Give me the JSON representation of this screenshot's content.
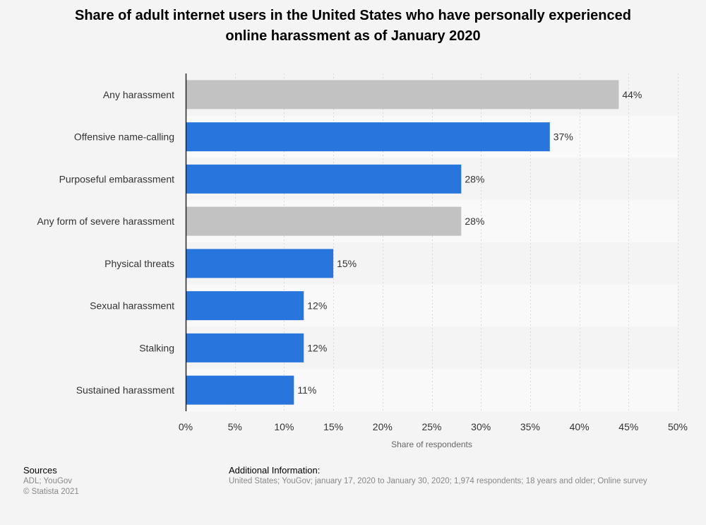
{
  "title_line1": "Share of adult internet users in the United States who have personally experienced",
  "title_line2": "online harassment as of January 2020",
  "chart_data": {
    "type": "bar",
    "orientation": "horizontal",
    "categories": [
      "Any harassment",
      "Offensive name-calling",
      "Purposeful embarassment",
      "Any form of severe harassment",
      "Physical threats",
      "Sexual harassment",
      "Stalking",
      "Sustained harassment"
    ],
    "values": [
      44,
      37,
      28,
      28,
      15,
      12,
      12,
      11
    ],
    "value_labels": [
      "44%",
      "37%",
      "28%",
      "28%",
      "15%",
      "12%",
      "12%",
      "11%"
    ],
    "bar_colors": [
      "#c2c2c2",
      "#2876dd",
      "#2876dd",
      "#c2c2c2",
      "#2876dd",
      "#2876dd",
      "#2876dd",
      "#2876dd"
    ],
    "xlabel": "Share of respondents",
    "ylabel": "",
    "xlim": [
      0,
      50
    ],
    "x_ticks": [
      0,
      5,
      10,
      15,
      20,
      25,
      30,
      35,
      40,
      45,
      50
    ],
    "x_tick_labels": [
      "0%",
      "5%",
      "10%",
      "15%",
      "20%",
      "25%",
      "30%",
      "35%",
      "40%",
      "45%",
      "50%"
    ],
    "grid": true
  },
  "footer": {
    "sources_header": "Sources",
    "sources_line1": "ADL; YouGov",
    "sources_line2": "© Statista 2021",
    "additional_header": "Additional Information:",
    "additional_text": "United States; YouGov; january 17, 2020 to January 30, 2020; 1,974 respondents; 18 years and older; Online survey"
  }
}
